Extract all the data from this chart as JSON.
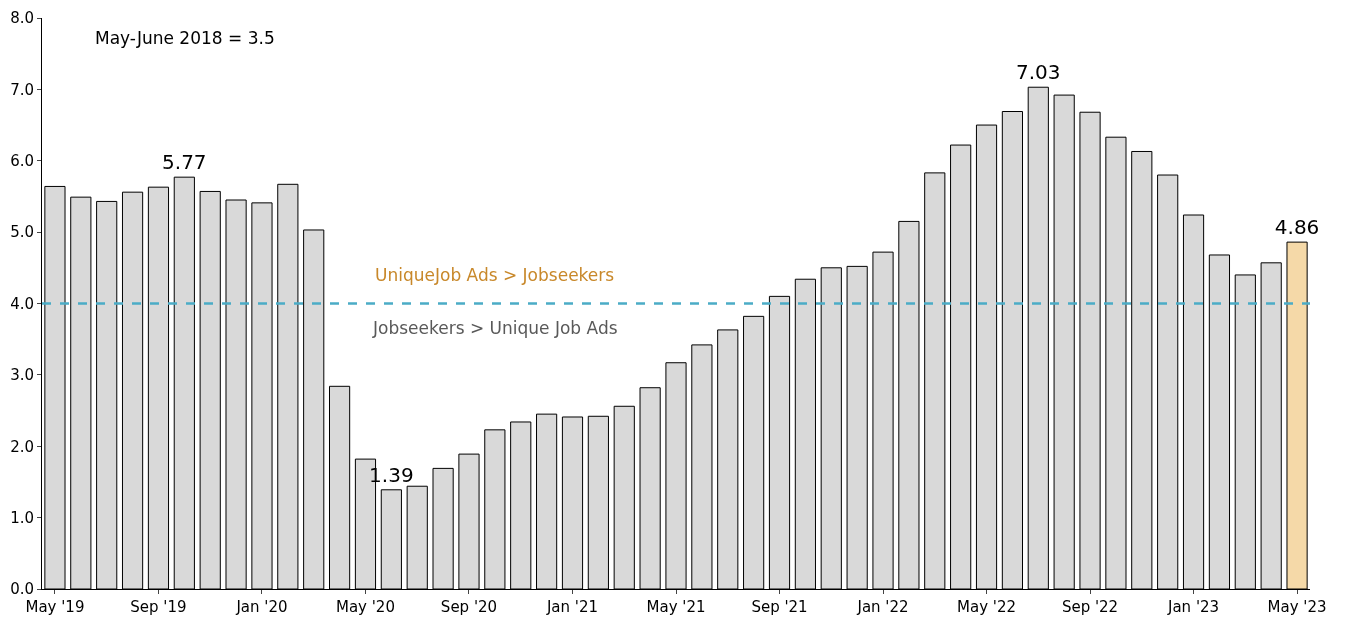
{
  "chart_data": {
    "type": "bar",
    "categories": [
      "May '19",
      null,
      null,
      null,
      "Sep '19",
      null,
      null,
      null,
      "Jan '20",
      null,
      null,
      null,
      "May '20",
      null,
      null,
      null,
      "Sep '20",
      null,
      null,
      null,
      "Jan '21",
      null,
      null,
      null,
      "May '21",
      null,
      null,
      null,
      "Sep '21",
      null,
      null,
      null,
      "Jan '22",
      null,
      null,
      null,
      "May '22",
      null,
      null,
      null,
      "Sep '22",
      null,
      null,
      null,
      "Jan '23",
      null,
      null,
      null,
      "May '23"
    ],
    "values": [
      5.64,
      5.49,
      5.43,
      5.56,
      5.63,
      5.77,
      5.57,
      5.45,
      5.41,
      5.67,
      5.03,
      2.84,
      1.82,
      1.39,
      1.44,
      1.69,
      1.89,
      2.23,
      2.34,
      2.45,
      2.41,
      2.42,
      2.56,
      2.82,
      3.17,
      3.42,
      3.63,
      3.82,
      4.1,
      4.34,
      4.5,
      4.52,
      4.72,
      5.15,
      5.83,
      6.22,
      6.5,
      6.69,
      7.03,
      6.92,
      6.68,
      6.33,
      6.13,
      5.8,
      5.24,
      4.68,
      4.4,
      4.57,
      4.86
    ],
    "colors": [
      "#d9d9d9",
      "#d9d9d9",
      "#d9d9d9",
      "#d9d9d9",
      "#d9d9d9",
      "#d9d9d9",
      "#d9d9d9",
      "#d9d9d9",
      "#d9d9d9",
      "#d9d9d9",
      "#d9d9d9",
      "#d9d9d9",
      "#d9d9d9",
      "#d9d9d9",
      "#d9d9d9",
      "#d9d9d9",
      "#d9d9d9",
      "#d9d9d9",
      "#d9d9d9",
      "#d9d9d9",
      "#d9d9d9",
      "#d9d9d9",
      "#d9d9d9",
      "#d9d9d9",
      "#d9d9d9",
      "#d9d9d9",
      "#d9d9d9",
      "#d9d9d9",
      "#d9d9d9",
      "#d9d9d9",
      "#d9d9d9",
      "#d9d9d9",
      "#d9d9d9",
      "#d9d9d9",
      "#d9d9d9",
      "#d9d9d9",
      "#d9d9d9",
      "#d9d9d9",
      "#d9d9d9",
      "#d9d9d9",
      "#d9d9d9",
      "#d9d9d9",
      "#d9d9d9",
      "#d9d9d9",
      "#d9d9d9",
      "#d9d9d9",
      "#d9d9d9",
      "#d9d9d9",
      "#f5d9a8"
    ],
    "value_labels": [
      null,
      null,
      null,
      null,
      null,
      "5.77",
      null,
      null,
      null,
      null,
      null,
      null,
      null,
      "1.39",
      null,
      null,
      null,
      null,
      null,
      null,
      null,
      null,
      null,
      null,
      null,
      null,
      null,
      null,
      null,
      null,
      null,
      null,
      null,
      null,
      null,
      null,
      null,
      null,
      "7.03",
      null,
      null,
      null,
      null,
      null,
      null,
      null,
      null,
      null,
      "4.86"
    ],
    "ylim": [
      0,
      8
    ],
    "yticks": [
      {
        "value": 0,
        "label": "0.0"
      },
      {
        "value": 1,
        "label": "1.0"
      },
      {
        "value": 2,
        "label": "2.0"
      },
      {
        "value": 3,
        "label": "3.0"
      },
      {
        "value": 4,
        "label": "4.0"
      },
      {
        "value": 5,
        "label": "5.0"
      },
      {
        "value": 6,
        "label": "6.0"
      },
      {
        "value": 7,
        "label": "7.0"
      },
      {
        "value": 8,
        "label": "8.0"
      }
    ],
    "ref_lines": [
      {
        "axis": "y",
        "value": 4,
        "color": "#4bacc6",
        "line_style": "dashed"
      }
    ],
    "annotations": [
      "May-June 2018 = 3.5",
      "UniqueJob Ads > Jobseekers",
      "Jobseekers > Unique Job Ads"
    ],
    "grid": false
  }
}
